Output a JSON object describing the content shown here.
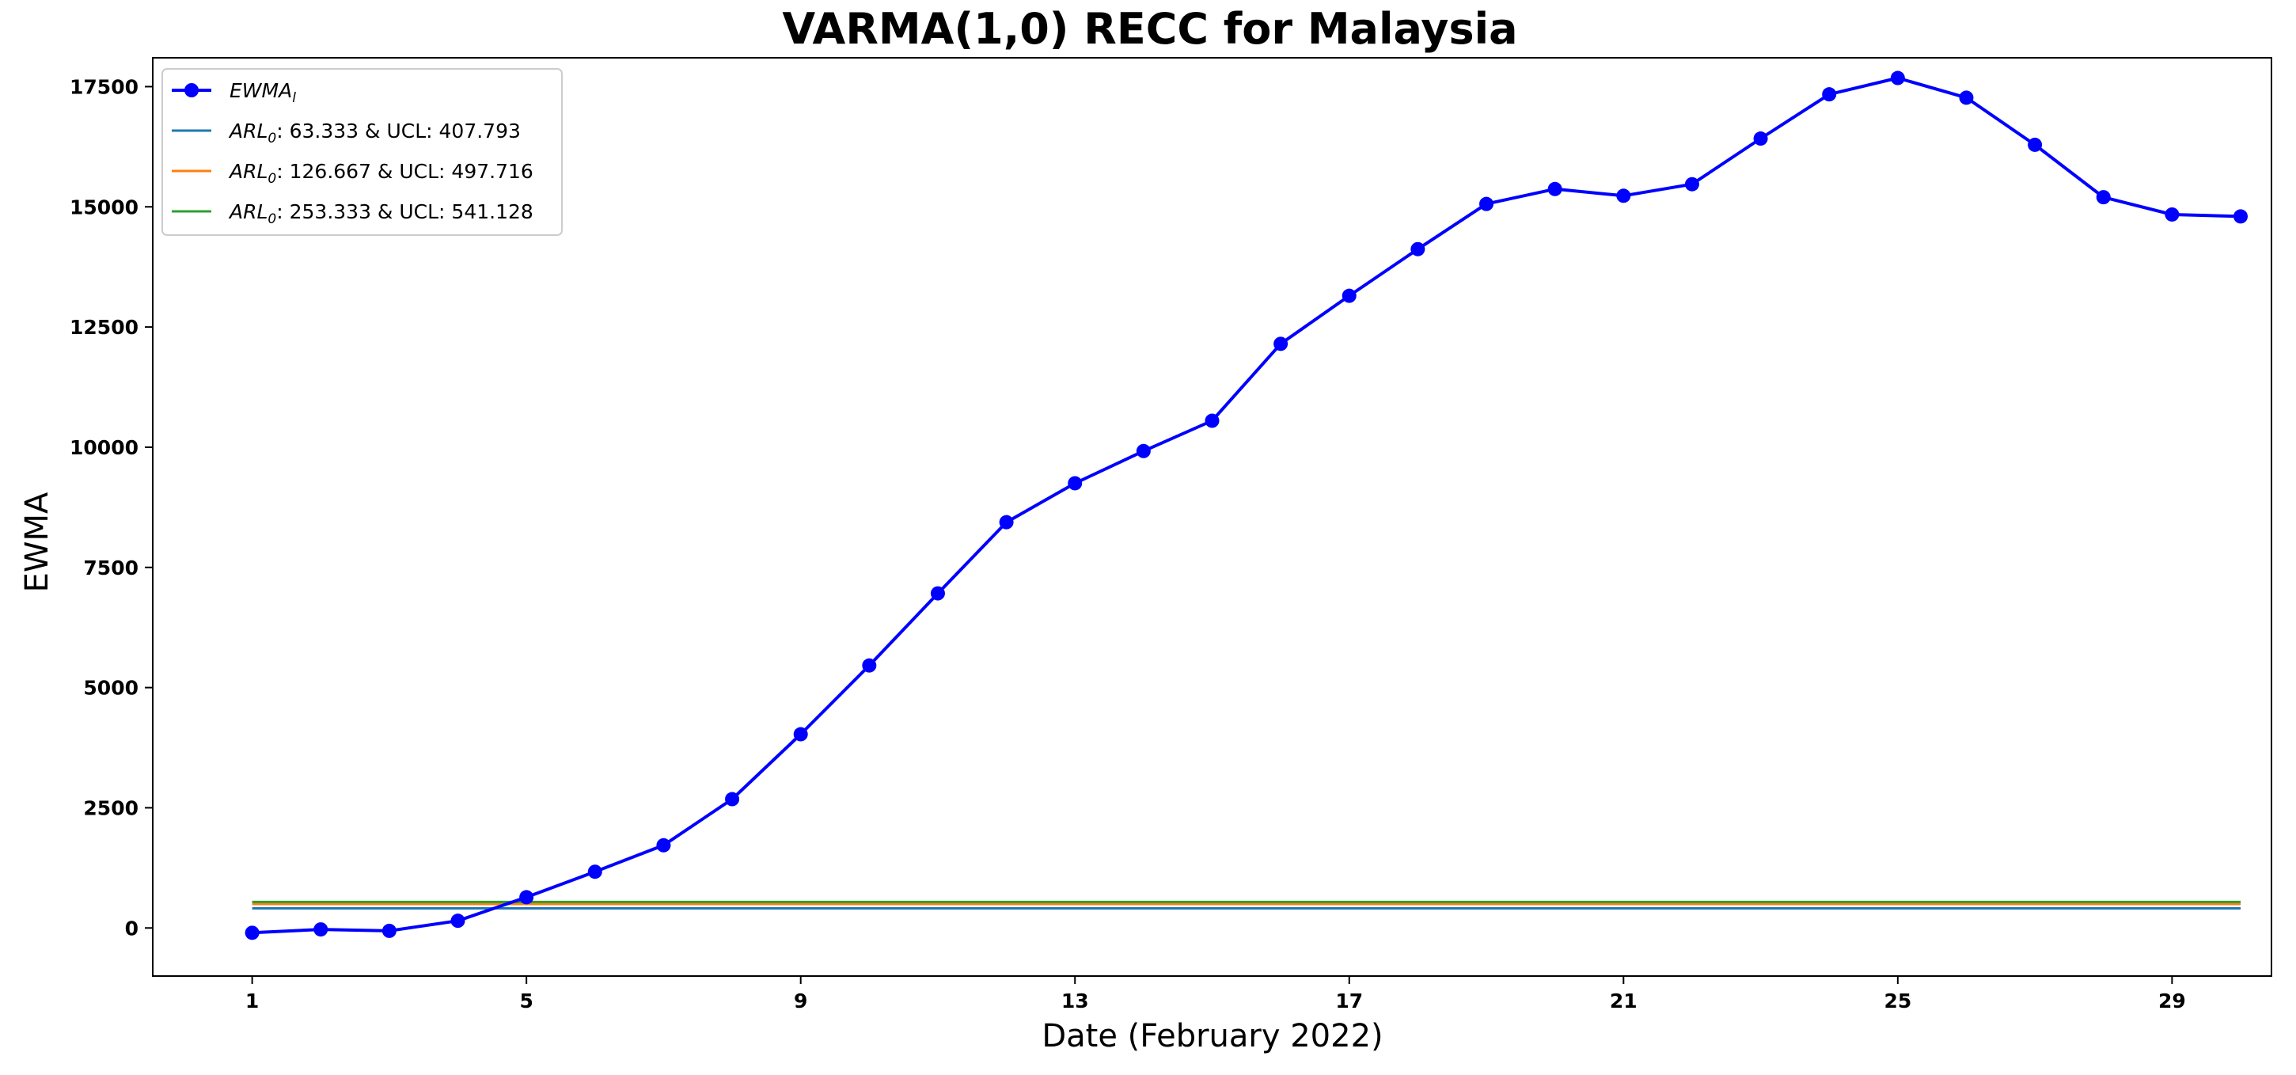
{
  "chart_data": {
    "type": "line",
    "title": "VARMA(1,0) RECC for Malaysia",
    "xlabel": "Date (February 2022)",
    "ylabel": "EWMA",
    "xlim": [
      -0.45,
      30.45
    ],
    "ylim": [
      -1000,
      18100
    ],
    "xticks": [
      1,
      5,
      9,
      13,
      17,
      21,
      25,
      29
    ],
    "yticks": [
      0,
      2500,
      5000,
      7500,
      10000,
      12500,
      15000,
      17500
    ],
    "legend_position": "upper-left",
    "series": [
      {
        "name": "EWMA_l",
        "legend_main": "EWMA",
        "legend_sub": "l",
        "color": "#0000ff",
        "marker": "circle",
        "x": [
          1,
          2,
          3,
          4,
          5,
          6,
          7,
          8,
          9,
          10,
          11,
          12,
          13,
          14,
          15,
          16,
          17,
          18,
          19,
          20,
          21,
          22,
          23,
          24,
          25,
          26,
          27,
          28,
          29,
          30
        ],
        "values": [
          -100,
          -30,
          -60,
          150,
          640,
          1170,
          1720,
          2680,
          4030,
          5460,
          6960,
          8440,
          9250,
          9920,
          10550,
          12150,
          13150,
          14120,
          15060,
          15370,
          15230,
          15470,
          16420,
          17340,
          17680,
          17270,
          16290,
          15200,
          14840,
          14800
        ]
      },
      {
        "name": "ARL0 63.333",
        "legend_main": "ARL",
        "legend_sub": "0",
        "legend_rest": ": 63.333 & UCL: 407.793",
        "color": "#1f77b4",
        "x_range": [
          1,
          30
        ],
        "value": 407.793
      },
      {
        "name": "ARL0 126.667",
        "legend_main": "ARL",
        "legend_sub": "0",
        "legend_rest": ": 126.667 & UCL: 497.716",
        "color": "#ff7f0e",
        "x_range": [
          1,
          30
        ],
        "value": 497.716
      },
      {
        "name": "ARL0 253.333",
        "legend_main": "ARL",
        "legend_sub": "0",
        "legend_rest": ": 253.333 & UCL: 541.128",
        "color": "#2ca02c",
        "x_range": [
          1,
          30
        ],
        "value": 541.128
      }
    ]
  }
}
